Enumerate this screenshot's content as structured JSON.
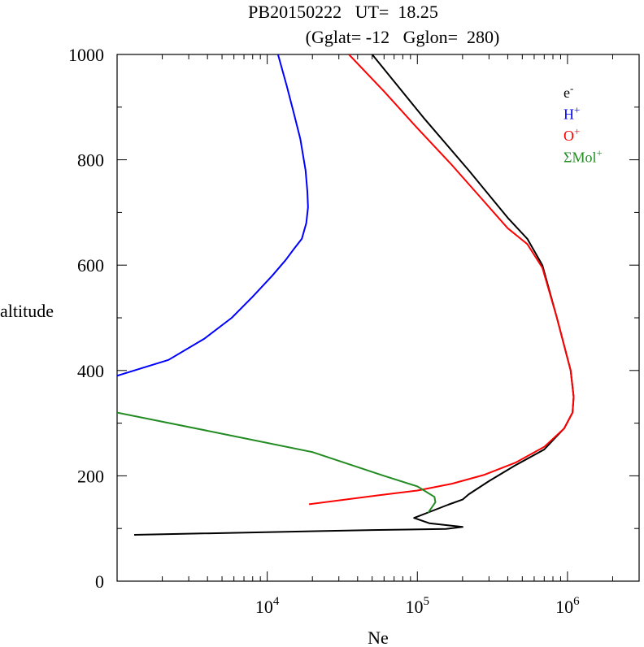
{
  "chart_data": {
    "type": "line",
    "title_line1": "PB20150222   UT=  18.25",
    "title_line2": "(Gglat= -12   Gglon=  280)",
    "xlabel": "Ne",
    "ylabel": "altitude",
    "xscale": "log",
    "xlim": [
      1000,
      3000000
    ],
    "ylim": [
      0,
      1000
    ],
    "y_ticks": [
      "0",
      "200",
      "400",
      "600",
      "800",
      "1000"
    ],
    "x_ticks": [
      {
        "value": 10000,
        "base": "10",
        "exp": "4"
      },
      {
        "value": 100000,
        "base": "10",
        "exp": "5"
      },
      {
        "value": 1000000,
        "base": "10",
        "exp": "6"
      }
    ],
    "legend_position": "top-right",
    "series": [
      {
        "name": "e",
        "name_sup": "-",
        "color": "#000000",
        "points": [
          [
            50000,
            1000
          ],
          [
            110000,
            880
          ],
          [
            220000,
            780
          ],
          [
            400000,
            690
          ],
          [
            540000,
            650
          ],
          [
            680000,
            600
          ],
          [
            850000,
            500
          ],
          [
            1050000,
            400
          ],
          [
            1100000,
            350
          ],
          [
            1080000,
            320
          ],
          [
            950000,
            290
          ],
          [
            700000,
            250
          ],
          [
            450000,
            220
          ],
          [
            300000,
            190
          ],
          [
            220000,
            165
          ],
          [
            200000,
            155
          ],
          [
            160000,
            145
          ],
          [
            130000,
            135
          ],
          [
            95000,
            120
          ],
          [
            120000,
            110
          ],
          [
            200000,
            103
          ],
          [
            155000,
            99
          ],
          [
            50000,
            97
          ],
          [
            1300,
            88
          ]
        ]
      },
      {
        "name": "H",
        "name_sup": "+",
        "color": "#0000ff",
        "points": [
          [
            11800,
            1000
          ],
          [
            13500,
            940
          ],
          [
            15000,
            890
          ],
          [
            16600,
            840
          ],
          [
            18000,
            780
          ],
          [
            18500,
            740
          ],
          [
            18700,
            710
          ],
          [
            18200,
            680
          ],
          [
            17000,
            650
          ],
          [
            15000,
            630
          ],
          [
            13300,
            610
          ],
          [
            10800,
            580
          ],
          [
            8000,
            540
          ],
          [
            5800,
            500
          ],
          [
            3800,
            460
          ],
          [
            2200,
            420
          ],
          [
            1000,
            390
          ]
        ]
      },
      {
        "name": "O",
        "name_sup": "+",
        "color": "#ff0000",
        "points": [
          [
            35000,
            1000
          ],
          [
            60000,
            930
          ],
          [
            100000,
            860
          ],
          [
            170000,
            790
          ],
          [
            280000,
            720
          ],
          [
            400000,
            670
          ],
          [
            540000,
            640
          ],
          [
            680000,
            595
          ],
          [
            850000,
            500
          ],
          [
            1050000,
            400
          ],
          [
            1100000,
            350
          ],
          [
            1080000,
            320
          ],
          [
            950000,
            290
          ],
          [
            700000,
            255
          ],
          [
            450000,
            225
          ],
          [
            280000,
            202
          ],
          [
            170000,
            185
          ],
          [
            100000,
            172
          ],
          [
            55000,
            163
          ],
          [
            19000,
            146
          ]
        ]
      },
      {
        "name": "ΣMol",
        "name_sup": "+",
        "color": "#228b22",
        "points": [
          [
            1000,
            320
          ],
          [
            5000,
            280
          ],
          [
            20000,
            245
          ],
          [
            60000,
            200
          ],
          [
            100000,
            180
          ],
          [
            130000,
            160
          ],
          [
            132000,
            150
          ],
          [
            118000,
            130
          ]
        ]
      }
    ]
  }
}
